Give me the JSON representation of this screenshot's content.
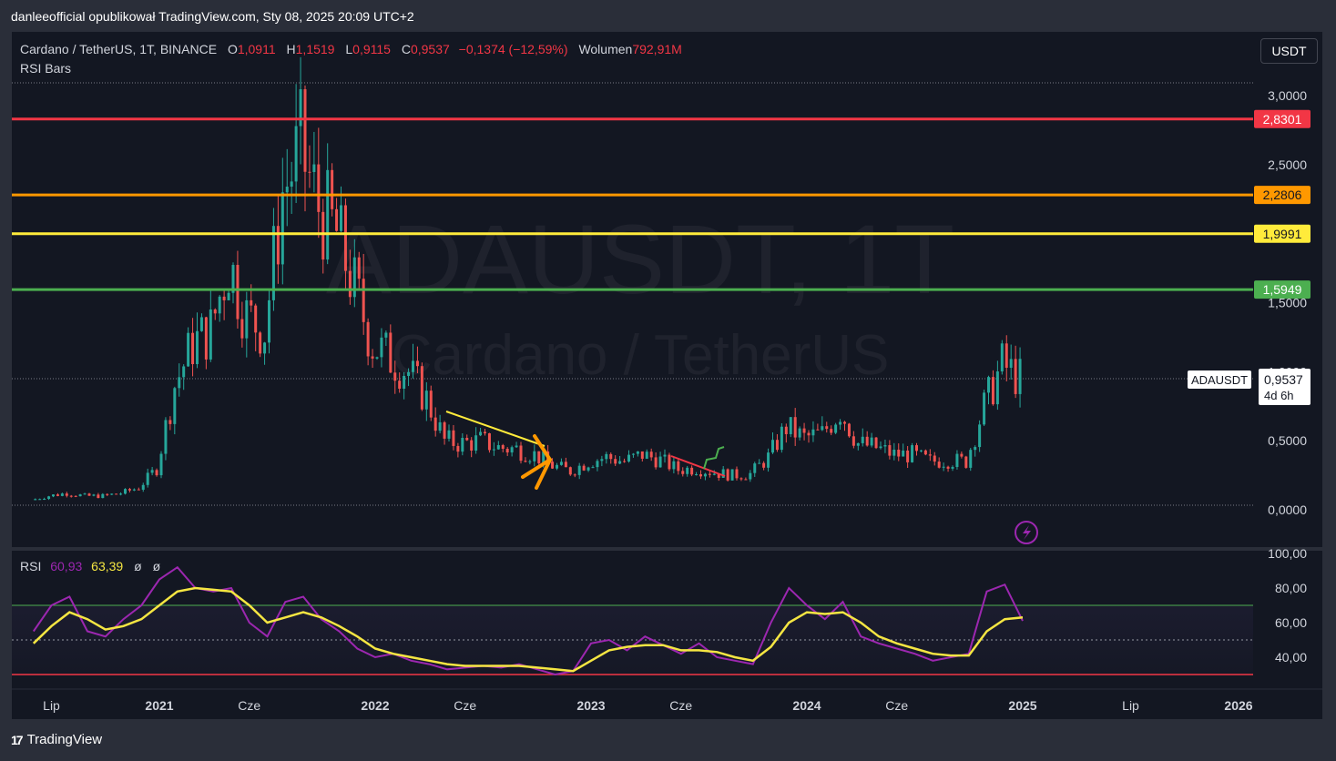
{
  "caption": "danleeofficial opublikował TradingView.com, Sty 08, 2025 20:09 UTC+2",
  "brand": "TradingView",
  "currency_button": "USDT",
  "header": {
    "symbol": "Cardano / TetherUS, 1T, BINANCE",
    "o_label": "O",
    "o_value": "1,0911",
    "h_label": "H",
    "h_value": "1,1519",
    "l_label": "L",
    "l_value": "0,9115",
    "c_label": "C",
    "c_value": "0,9537",
    "change": "−0,1374 (−12,59%)",
    "volume_label": "Wolumen",
    "volume_value": "792,91M"
  },
  "indicator_label": "RSI Bars",
  "watermark": {
    "line1": "ADAUSDT, 1T",
    "line2": "Cardano / TetherUS"
  },
  "rsi_legend": {
    "name": "RSI",
    "value1": "60,93",
    "value2": "63,39",
    "ph1": "ø",
    "ph2": "ø"
  },
  "colors": {
    "up": "#26a69a",
    "down": "#ef5350",
    "background": "#131722",
    "red_level": "#f23645",
    "orange_level": "#ff9800",
    "yellow_level": "#ffeb3b",
    "green_level": "#4caf50",
    "rsi_line": "#9c27b0",
    "rsi_ma": "#f5e642"
  },
  "chart_data": [
    {
      "type": "line",
      "title": "Cardano / TetherUS, 1T, BINANCE",
      "y_axis_ticks": [
        "3,0000",
        "2,5000",
        "1,5000",
        "1,0000",
        "0,5000",
        "0,0000"
      ],
      "x_axis_ticks": [
        "Lip",
        "2021",
        "Cze",
        "2022",
        "Cze",
        "2023",
        "Cze",
        "2024",
        "Cze",
        "2025",
        "Lip",
        "2026"
      ],
      "ylim": [
        -0.1,
        3.1
      ],
      "grid": false,
      "levels": [
        {
          "label": "2,8301",
          "value": 2.8301,
          "color": "#f23645"
        },
        {
          "label": "2,2806",
          "value": 2.2806,
          "color": "#ff9800"
        },
        {
          "label": "1,9991",
          "value": 1.9991,
          "color": "#ffeb3b"
        },
        {
          "label": "1,5949",
          "value": 1.5949,
          "color": "#4caf50"
        }
      ],
      "last_price": {
        "symbol": "ADAUSDT",
        "value": "0,9537",
        "countdown": "4d 6h"
      },
      "x": [
        "2020-06",
        "2020-07",
        "2020-08",
        "2020-09",
        "2020-10",
        "2020-11",
        "2020-12",
        "2021-01",
        "2021-02",
        "2021-03",
        "2021-04",
        "2021-05",
        "2021-06",
        "2021-07",
        "2021-08",
        "2021-09",
        "2021-10",
        "2021-11",
        "2021-12",
        "2022-01",
        "2022-02",
        "2022-03",
        "2022-04",
        "2022-05",
        "2022-06",
        "2022-07",
        "2022-08",
        "2022-09",
        "2022-10",
        "2022-11",
        "2022-12",
        "2023-01",
        "2023-02",
        "2023-03",
        "2023-04",
        "2023-05",
        "2023-06",
        "2023-07",
        "2023-08",
        "2023-09",
        "2023-10",
        "2023-11",
        "2023-12",
        "2024-01",
        "2024-02",
        "2024-03",
        "2024-04",
        "2024-05",
        "2024-06",
        "2024-07",
        "2024-08",
        "2024-09",
        "2024-10",
        "2024-11",
        "2024-12",
        "2025-01"
      ],
      "series": [
        {
          "values": [
            0.07,
            0.1,
            0.12,
            0.1,
            0.1,
            0.12,
            0.16,
            0.3,
            0.9,
            1.2,
            1.3,
            1.8,
            1.4,
            1.3,
            2.3,
            2.6,
            2.2,
            2.0,
            1.6,
            1.2,
            1.1,
            1.0,
            0.8,
            0.5,
            0.48,
            0.5,
            0.45,
            0.44,
            0.4,
            0.32,
            0.28,
            0.35,
            0.38,
            0.35,
            0.4,
            0.36,
            0.29,
            0.3,
            0.27,
            0.25,
            0.26,
            0.38,
            0.6,
            0.52,
            0.55,
            0.72,
            0.48,
            0.45,
            0.4,
            0.4,
            0.35,
            0.36,
            0.35,
            0.75,
            1.05,
            0.95
          ]
        }
      ]
    },
    {
      "type": "line",
      "title": "RSI",
      "y_axis_ticks": [
        "100,00",
        "80,00",
        "60,00",
        "40,00"
      ],
      "ylim": [
        20,
        100
      ],
      "bands": [
        70,
        50,
        30
      ],
      "x": [
        "2020-06",
        "2020-07",
        "2020-08",
        "2020-09",
        "2020-10",
        "2020-11",
        "2020-12",
        "2021-01",
        "2021-02",
        "2021-03",
        "2021-04",
        "2021-05",
        "2021-06",
        "2021-07",
        "2021-08",
        "2021-09",
        "2021-10",
        "2021-11",
        "2021-12",
        "2022-01",
        "2022-02",
        "2022-03",
        "2022-04",
        "2022-05",
        "2022-06",
        "2022-07",
        "2022-08",
        "2022-09",
        "2022-10",
        "2022-11",
        "2022-12",
        "2023-01",
        "2023-02",
        "2023-03",
        "2023-04",
        "2023-05",
        "2023-06",
        "2023-07",
        "2023-08",
        "2023-09",
        "2023-10",
        "2023-11",
        "2023-12",
        "2024-01",
        "2024-02",
        "2024-03",
        "2024-04",
        "2024-05",
        "2024-06",
        "2024-07",
        "2024-08",
        "2024-09",
        "2024-10",
        "2024-11",
        "2024-12",
        "2025-01"
      ],
      "series": [
        {
          "values": [
            55,
            70,
            75,
            55,
            52,
            62,
            70,
            85,
            92,
            80,
            78,
            80,
            60,
            52,
            72,
            75,
            62,
            55,
            45,
            40,
            42,
            38,
            36,
            33,
            34,
            35,
            34,
            36,
            33,
            30,
            32,
            48,
            50,
            44,
            52,
            47,
            42,
            48,
            40,
            38,
            36,
            60,
            80,
            70,
            62,
            72,
            52,
            48,
            45,
            42,
            38,
            40,
            42,
            78,
            82,
            61
          ]
        },
        {
          "values": [
            48,
            58,
            66,
            62,
            56,
            58,
            62,
            70,
            78,
            80,
            79,
            78,
            70,
            60,
            63,
            66,
            63,
            58,
            52,
            45,
            42,
            40,
            38,
            36,
            35,
            35,
            35,
            35,
            34,
            33,
            32,
            38,
            44,
            46,
            47,
            47,
            44,
            44,
            43,
            40,
            38,
            46,
            60,
            66,
            65,
            66,
            60,
            52,
            48,
            45,
            42,
            41,
            41,
            55,
            62,
            63
          ]
        }
      ]
    }
  ]
}
